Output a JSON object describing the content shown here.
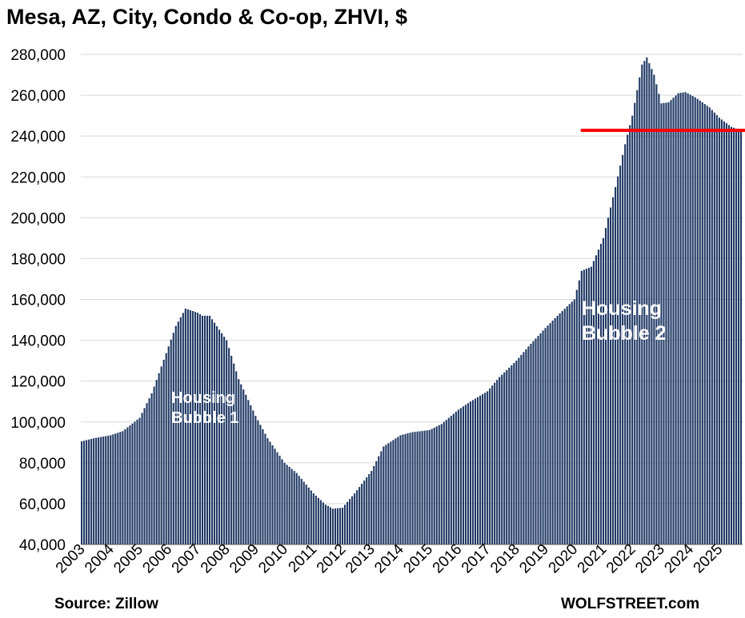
{
  "chart_data": {
    "type": "bar",
    "title": "Mesa, AZ, City, Condo & Co-op, ZHVI, $",
    "source": "Source: Zillow",
    "brand": "WOLFSTREET.com",
    "xlabel": "",
    "ylabel": "",
    "ylim": [
      40000,
      280000
    ],
    "y_ticks": [
      40000,
      60000,
      80000,
      100000,
      120000,
      140000,
      160000,
      180000,
      200000,
      220000,
      240000,
      260000,
      280000
    ],
    "y_tick_labels": [
      "40,000",
      "60,000",
      "80,000",
      "100,000",
      "120,000",
      "140,000",
      "160,000",
      "180,000",
      "200,000",
      "220,000",
      "240,000",
      "260,000",
      "280,000"
    ],
    "x_tick_labels": [
      "2003",
      "2004",
      "2005",
      "2006",
      "2007",
      "2008",
      "2009",
      "2010",
      "2011",
      "2012",
      "2013",
      "2014",
      "2015",
      "2016",
      "2017",
      "2018",
      "2019",
      "2020",
      "2021",
      "2022",
      "2023",
      "2024",
      "2025"
    ],
    "grid": true,
    "bar_color": "#1f3864",
    "reference_line": {
      "value": 242800,
      "color": "#ff0000",
      "start": "2020-04"
    },
    "annotations": [
      "Housing\nBubble 1",
      "Housing\nBubble 2"
    ],
    "series": [
      {
        "frequency": "monthly",
        "start": "2003-01",
        "end": "2025-10",
        "anchors": [
          [
            "2003-01",
            90500
          ],
          [
            "2003-06",
            92000
          ],
          [
            "2004-01",
            93500
          ],
          [
            "2004-06",
            95500
          ],
          [
            "2005-01",
            102000
          ],
          [
            "2005-06",
            114000
          ],
          [
            "2006-01",
            137000
          ],
          [
            "2006-04",
            147000
          ],
          [
            "2006-08",
            155500
          ],
          [
            "2007-01",
            153500
          ],
          [
            "2007-03",
            152000
          ],
          [
            "2007-06",
            152000
          ],
          [
            "2008-01",
            140000
          ],
          [
            "2008-06",
            121000
          ],
          [
            "2009-01",
            103000
          ],
          [
            "2009-06",
            92000
          ],
          [
            "2010-01",
            80000
          ],
          [
            "2010-06",
            75000
          ],
          [
            "2011-01",
            65000
          ],
          [
            "2011-06",
            59500
          ],
          [
            "2011-09",
            57500
          ],
          [
            "2012-01",
            58000
          ],
          [
            "2012-06",
            65000
          ],
          [
            "2013-01",
            76000
          ],
          [
            "2013-06",
            88000
          ],
          [
            "2014-01",
            93500
          ],
          [
            "2014-06",
            95000
          ],
          [
            "2015-01",
            96000
          ],
          [
            "2015-06",
            99000
          ],
          [
            "2016-01",
            106000
          ],
          [
            "2016-06",
            110000
          ],
          [
            "2017-01",
            115000
          ],
          [
            "2017-06",
            122000
          ],
          [
            "2018-01",
            130000
          ],
          [
            "2018-06",
            137000
          ],
          [
            "2019-01",
            146000
          ],
          [
            "2019-06",
            152000
          ],
          [
            "2020-01",
            160000
          ],
          [
            "2020-04",
            174000
          ],
          [
            "2020-08",
            176000
          ],
          [
            "2021-01",
            190000
          ],
          [
            "2021-06",
            215000
          ],
          [
            "2021-10",
            236000
          ],
          [
            "2022-01",
            250000
          ],
          [
            "2022-05",
            275000
          ],
          [
            "2022-07",
            278500
          ],
          [
            "2022-10",
            270000
          ],
          [
            "2023-01",
            256000
          ],
          [
            "2023-04",
            256500
          ],
          [
            "2023-08",
            261000
          ],
          [
            "2023-11",
            261500
          ],
          [
            "2024-03",
            259000
          ],
          [
            "2024-09",
            254000
          ],
          [
            "2025-01",
            249000
          ],
          [
            "2025-06",
            244500
          ],
          [
            "2025-10",
            242800
          ]
        ]
      }
    ]
  }
}
